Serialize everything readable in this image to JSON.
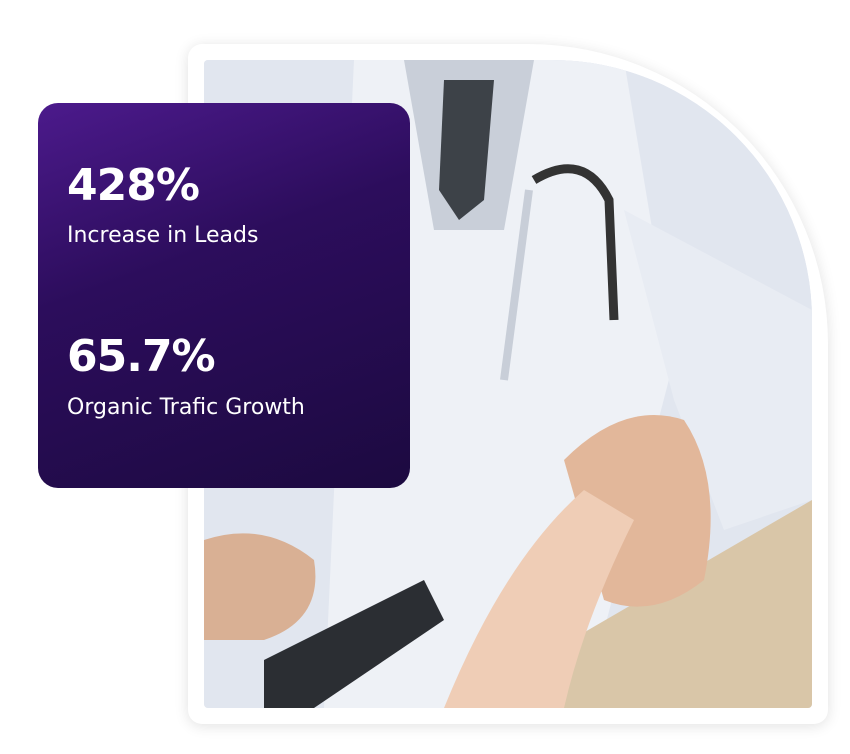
{
  "stats": [
    {
      "value": "428%",
      "label": "Increase in Leads"
    },
    {
      "value": "65.7%",
      "label": "Organic Trafic Growth"
    }
  ],
  "colors": {
    "card_top": "#4c1a8c",
    "card_bottom": "#1c0a40",
    "text": "#ffffff"
  },
  "image": {
    "subject": "doctor-handshake-photo"
  }
}
